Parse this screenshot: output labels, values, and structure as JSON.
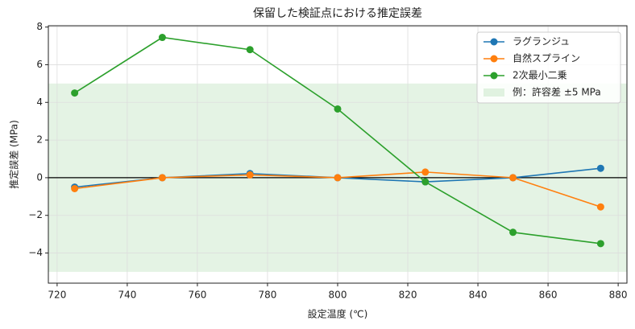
{
  "chart_data": {
    "type": "line",
    "title": "保留した検証点における推定誤差",
    "xlabel": "設定温度 (℃)",
    "ylabel": "推定誤差 (MPa)",
    "x": [
      725,
      750,
      775,
      800,
      825,
      850,
      875
    ],
    "series": [
      {
        "name": "ラグランジュ",
        "color": "#1f77b4",
        "values": [
          -0.5,
          0,
          0.22,
          0,
          -0.22,
          0,
          0.5
        ]
      },
      {
        "name": "自然スプライン",
        "color": "#ff7f0e",
        "values": [
          -0.58,
          0,
          0.15,
          0,
          0.3,
          0,
          -1.55
        ]
      },
      {
        "name": "2次最小二乗",
        "color": "#2ca02c",
        "values": [
          4.5,
          7.45,
          6.8,
          3.65,
          -0.22,
          -2.9,
          -3.5
        ]
      }
    ],
    "band": {
      "name": "例：許容差 ±5 MPa",
      "range": [
        -5,
        5
      ],
      "color": "#2ca02c"
    },
    "hline": 0,
    "xlim": [
      717.5,
      882.5
    ],
    "xticks": [
      720,
      740,
      760,
      780,
      800,
      820,
      840,
      860,
      880
    ],
    "ylim": [
      -5.6,
      8.07
    ],
    "yticks": [
      {
        "value": -4,
        "label": "−4"
      },
      {
        "value": -2,
        "label": "−2"
      },
      0,
      2,
      4,
      6,
      8
    ],
    "grid": true,
    "legend": "upper right"
  }
}
